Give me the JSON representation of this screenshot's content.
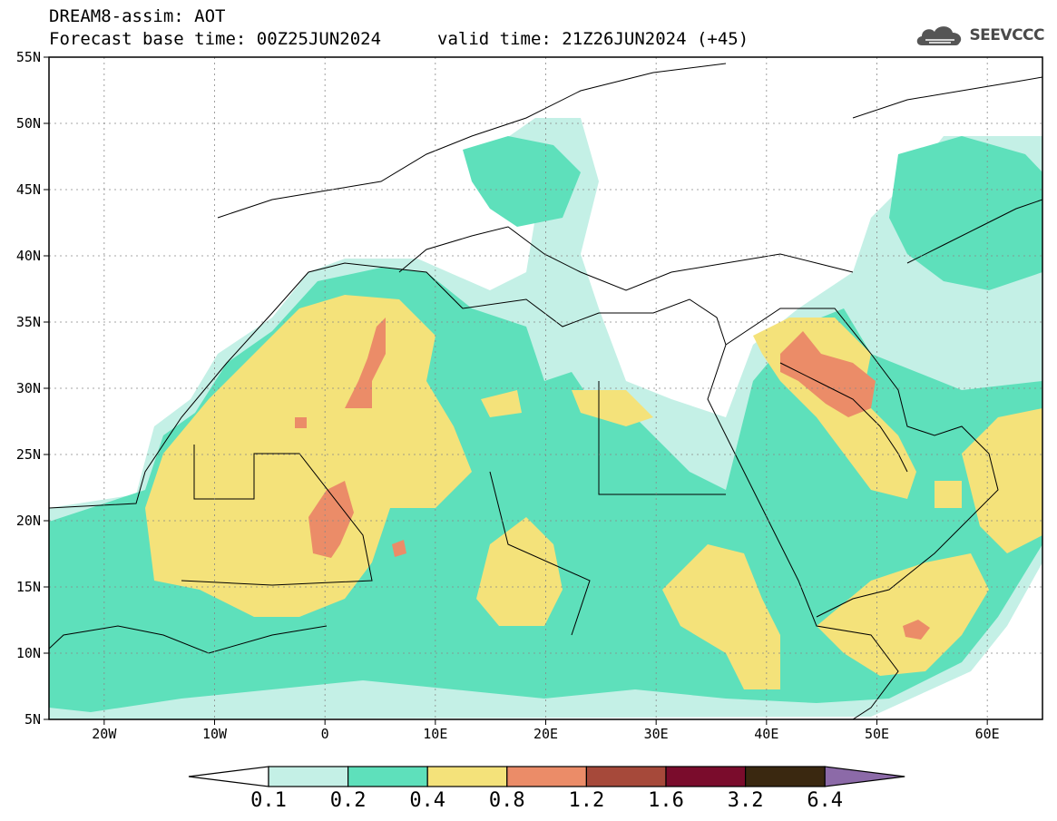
{
  "header": {
    "line1": "DREAM8-assim: AOT",
    "line2": "Forecast base time: 00Z25JUN2024",
    "valid": "valid time: 21Z26JUN2024 (+45)"
  },
  "logo": {
    "text": "SEEVCCC",
    "icon": "cloud-icon"
  },
  "map": {
    "lon_range": [
      -25,
      65
    ],
    "lat_range": [
      5,
      55
    ],
    "lat_ticks": [
      "55N",
      "50N",
      "45N",
      "40N",
      "35N",
      "30N",
      "25N",
      "20N",
      "15N",
      "10N",
      "5N"
    ],
    "lon_ticks": [
      "20W",
      "10W",
      "0",
      "10E",
      "20E",
      "30E",
      "40E",
      "50E",
      "60E"
    ],
    "grid": true
  },
  "colorbar": {
    "labels": [
      "0.1",
      "0.2",
      "0.4",
      "0.8",
      "1.2",
      "1.6",
      "3.2",
      "6.4"
    ],
    "colors": [
      "#ffffff",
      "#c4f0e6",
      "#5ee0bb",
      "#f4e27a",
      "#eb8c68",
      "#a6493a",
      "#7a0c2c",
      "#3a2810",
      "#8c6aa8"
    ]
  }
}
